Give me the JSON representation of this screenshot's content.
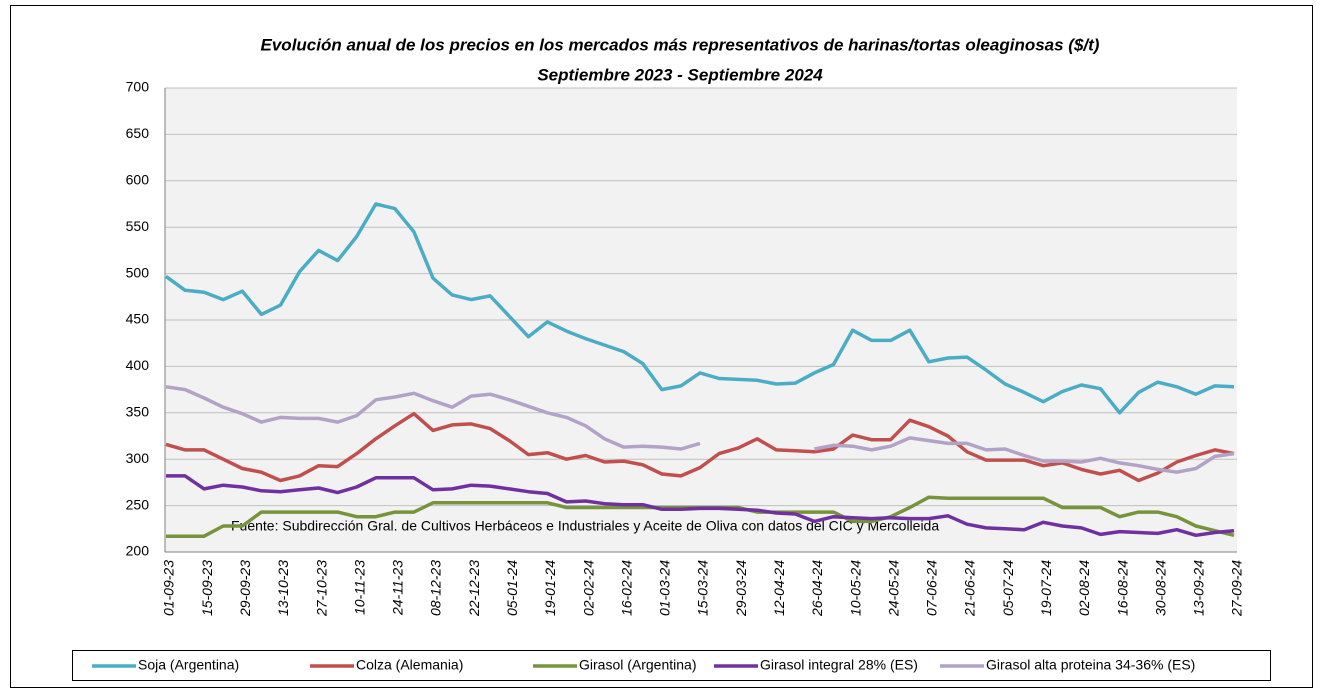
{
  "chart_data": {
    "type": "line",
    "title": "Evolución anual de los precios en los mercados más representativos de harinas/tortas oleaginosas ($/t)",
    "subtitle": "Septiembre 2023 - Septiembre 2024",
    "annotation": "Fuente: Subdirección Gral. de Cultivos Herbáceos e Industriales y Aceite de Oliva con datos del CIC y Mercolleida",
    "categories": [
      "01-09-23",
      null,
      "15-09-23",
      null,
      "29-09-23",
      null,
      "13-10-23",
      null,
      "27-10-23",
      null,
      "10-11-23",
      null,
      "24-11-23",
      null,
      "08-12-23",
      null,
      "22-12-23",
      null,
      "05-01-24",
      null,
      "19-01-24",
      null,
      "02-02-24",
      null,
      "16-02-24",
      null,
      "01-03-24",
      null,
      "15-03-24",
      null,
      "29-03-24",
      null,
      "12-04-24",
      null,
      "26-04-24",
      null,
      "10-05-24",
      null,
      "24-05-24",
      null,
      "07-06-24",
      null,
      "21-06-24",
      null,
      "05-07-24",
      null,
      "19-07-24",
      null,
      "02-08-24",
      null,
      "16-08-24",
      null,
      "30-08-24",
      null,
      "13-09-24",
      null,
      "27-09-24"
    ],
    "series": [
      {
        "name": "Soja (Argentina)",
        "color": "#4bacc6",
        "values": [
          497,
          482,
          480,
          472,
          481,
          456,
          466,
          502,
          525,
          514,
          540,
          575,
          570,
          545,
          495,
          477,
          472,
          476,
          454,
          432,
          448,
          438,
          430,
          423,
          416,
          403,
          375,
          379,
          393,
          387,
          386,
          385,
          381,
          382,
          393,
          402,
          439,
          428,
          428,
          439,
          405,
          409,
          410,
          396,
          381,
          372,
          362,
          373,
          380,
          376,
          350,
          372,
          383,
          378,
          370,
          379,
          378
        ]
      },
      {
        "name": "Colza (Alemania)",
        "color": "#c0504d",
        "values": [
          316,
          310,
          310,
          300,
          290,
          286,
          277,
          282,
          293,
          292,
          306,
          322,
          336,
          349,
          331,
          337,
          338,
          333,
          320,
          305,
          307,
          300,
          304,
          297,
          298,
          294,
          284,
          282,
          291,
          306,
          312,
          322,
          310,
          309,
          308,
          311,
          326,
          321,
          321,
          342,
          335,
          325,
          308,
          299,
          299,
          299,
          293,
          296,
          289,
          284,
          288,
          277,
          285,
          297,
          304,
          310,
          306
        ]
      },
      {
        "name": "Girasol (Argentina)",
        "color": "#77933c",
        "values": [
          217,
          217,
          217,
          228,
          228,
          243,
          243,
          243,
          243,
          243,
          238,
          238,
          243,
          243,
          253,
          253,
          253,
          253,
          253,
          253,
          253,
          248,
          248,
          248,
          248,
          248,
          248,
          248,
          248,
          248,
          248,
          243,
          243,
          243,
          243,
          243,
          233,
          233,
          238,
          248,
          259,
          258,
          258,
          258,
          258,
          258,
          258,
          248,
          248,
          248,
          238,
          243,
          243,
          238,
          228,
          223,
          218
        ]
      },
      {
        "name": "Girasol integral 28% (ES)",
        "color": "#7030a0",
        "values": [
          282,
          282,
          268,
          272,
          270,
          266,
          265,
          267,
          269,
          264,
          270,
          280,
          280,
          280,
          267,
          268,
          272,
          271,
          268,
          265,
          263,
          254,
          255,
          252,
          251,
          251,
          246,
          246,
          247,
          247,
          246,
          245,
          242,
          241,
          233,
          238,
          237,
          236,
          237,
          236,
          236,
          239,
          230,
          226,
          225,
          224,
          232,
          228,
          226,
          219,
          222,
          221,
          220,
          224,
          218,
          221,
          223
        ]
      },
      {
        "name": "Girasol alta proteina 34-36% (ES)",
        "color": "#b3a2c7",
        "values": [
          378,
          375,
          366,
          356,
          349,
          340,
          345,
          344,
          344,
          340,
          347,
          364,
          367,
          371,
          363,
          356,
          368,
          370,
          364,
          357,
          350,
          345,
          336,
          322,
          313,
          314,
          313,
          311,
          317,
          null,
          null,
          null,
          null,
          null,
          311,
          315,
          314,
          310,
          314,
          323,
          320,
          317,
          317,
          310,
          311,
          304,
          298,
          298,
          297,
          301,
          296,
          293,
          289,
          286,
          290,
          303,
          306
        ]
      }
    ],
    "ylim": [
      200,
      700
    ],
    "yticks": [
      200,
      250,
      300,
      350,
      400,
      450,
      500,
      550,
      600,
      650,
      700
    ],
    "grid": true,
    "legend": "bottom"
  }
}
